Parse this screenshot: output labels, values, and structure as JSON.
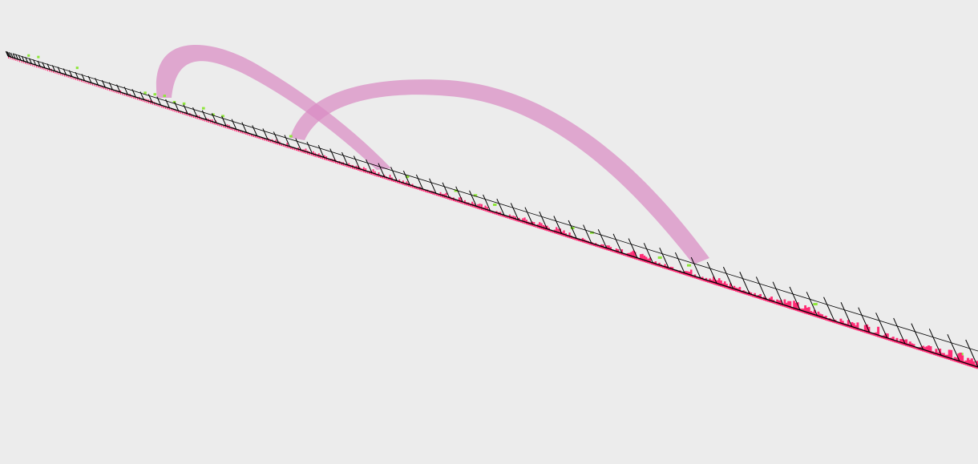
{
  "scene": {
    "type": "3d-genome-track-view",
    "background_color": "#ececec",
    "colors": {
      "axis_line": "#000000",
      "tick": "#000000",
      "signal_primary": "#ff2b74",
      "signal_secondary": "#8ee63a",
      "arc": "#d98cc4"
    },
    "tracks": [
      {
        "name": "signal-track-pink",
        "color": "#ff2b74"
      },
      {
        "name": "signal-track-green",
        "color": "#8ee63a"
      }
    ],
    "links": [
      {
        "name": "arc-link-1"
      },
      {
        "name": "arc-link-2"
      }
    ]
  }
}
